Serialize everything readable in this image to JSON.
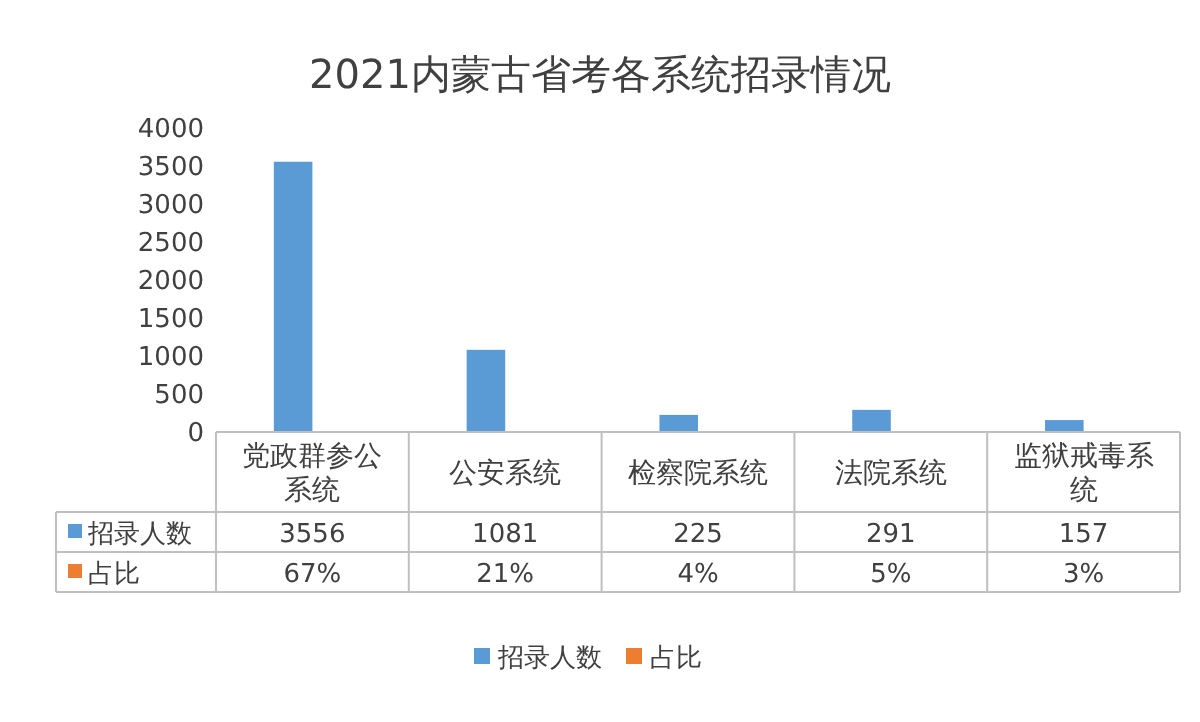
{
  "chart_data": {
    "type": "bar",
    "title": "2021内蒙古省考各系统招录情况",
    "categories": [
      "党政群参公系统",
      "公安系统",
      "检察院系统",
      "法院系统",
      "监狱戒毒系统"
    ],
    "series": [
      {
        "name": "招录人数",
        "color": "#5b9bd5",
        "values": [
          3556,
          1081,
          225,
          291,
          157
        ],
        "value_labels": [
          "3556",
          "1081",
          "225",
          "291",
          "157"
        ]
      },
      {
        "name": "占比",
        "color": "#ed7d31",
        "values": [
          0.67,
          0.21,
          0.04,
          0.05,
          0.03
        ],
        "value_labels": [
          "67%",
          "21%",
          "4%",
          "5%",
          "3%"
        ]
      }
    ],
    "ylim": [
      0,
      4000
    ],
    "yticks": [
      0,
      500,
      1000,
      1500,
      2000,
      2500,
      3000,
      3500,
      4000
    ],
    "legend": "bottom"
  }
}
